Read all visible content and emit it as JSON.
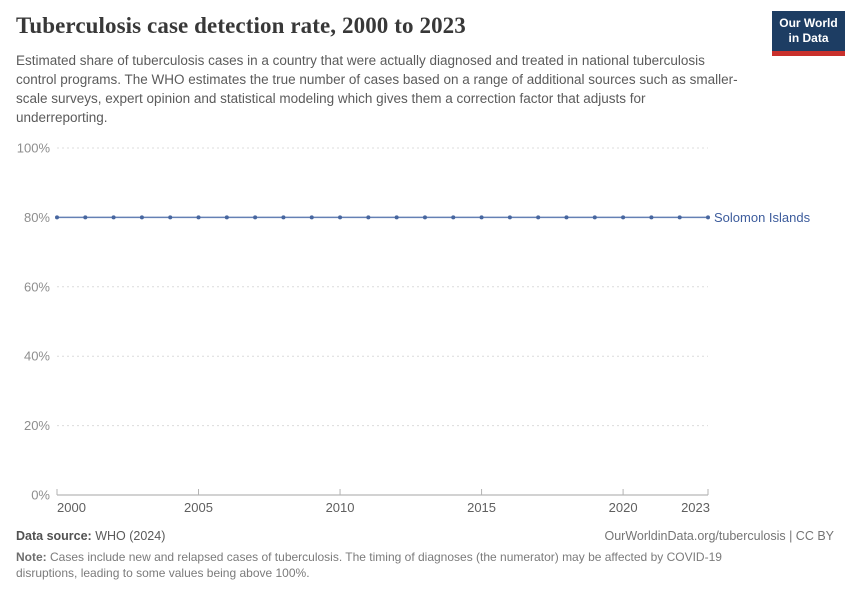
{
  "header": {
    "title": "Tuberculosis case detection rate, 2000 to 2023",
    "subtitle": "Estimated share of tuberculosis cases in a country that were actually diagnosed and treated in national tuberculosis control programs. The WHO estimates the true number of cases based on a range of additional sources such as smaller-scale surveys, expert opinion and statistical modeling which gives them a correction factor that adjusts for underreporting.",
    "logo": {
      "line1": "Our World",
      "line2": "in Data",
      "bg_color": "#1d3d63",
      "bar_color": "#c9302c"
    }
  },
  "chart_data": {
    "type": "line",
    "title": "Tuberculosis case detection rate, 2000 to 2023",
    "x": [
      2000,
      2001,
      2002,
      2003,
      2004,
      2005,
      2006,
      2007,
      2008,
      2009,
      2010,
      2011,
      2012,
      2013,
      2014,
      2015,
      2016,
      2017,
      2018,
      2019,
      2020,
      2021,
      2022,
      2023
    ],
    "series": [
      {
        "name": "Solomon Islands",
        "values": [
          80,
          80,
          80,
          80,
          80,
          80,
          80,
          80,
          80,
          80,
          80,
          80,
          80,
          80,
          80,
          80,
          80,
          80,
          80,
          80,
          80,
          80,
          80,
          80
        ],
        "line_color": "#6480b4",
        "marker_color": "#47669f",
        "label_color": "#3d5c9c"
      }
    ],
    "xlabel": "",
    "ylabel": "",
    "ylim": [
      0,
      100
    ],
    "yticks": [
      0,
      20,
      40,
      60,
      80,
      100
    ],
    "ytick_format": "{}%",
    "xticks": [
      2000,
      2005,
      2010,
      2015,
      2020,
      2023
    ],
    "grid": "horizontal-dashed",
    "legend_position": "end-of-line",
    "colors": {
      "gridline": "#dcdcdc",
      "axis": "#a5a5a5",
      "tick": "#b3b3b3",
      "ytick_label": "#8e8e8e",
      "xtick_label": "#5f5f5f"
    }
  },
  "footer": {
    "datasource_label": "Data source:",
    "datasource_value": " WHO (2024)",
    "attribution": "OurWorldinData.org/tuberculosis | CC BY",
    "note_label": "Note:",
    "note_value": " Cases include new and relapsed cases of tuberculosis. The timing of diagnoses (the numerator) may be affected by COVID-19 disruptions, leading to some values being above 100%."
  }
}
